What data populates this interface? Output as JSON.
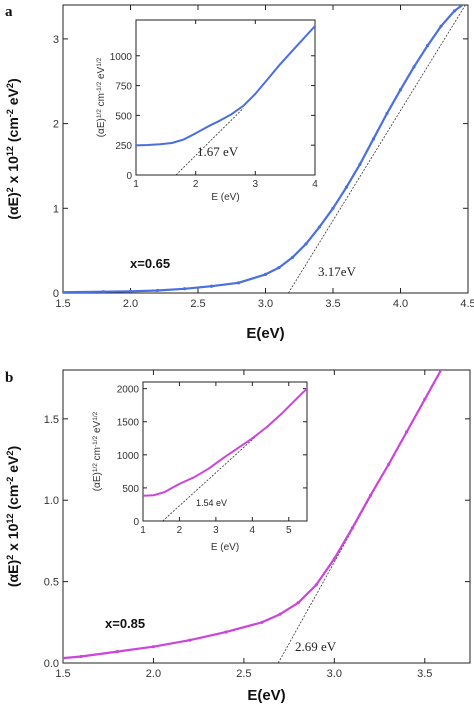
{
  "chart_data": [
    {
      "panel": "a",
      "type": "line",
      "xlabel": "E(eV)",
      "ylabel_html": "(αE)² x 10¹² (cm⁻² eV²)",
      "xlim": [
        1.5,
        4.5
      ],
      "ylim": [
        0,
        3.4
      ],
      "xticks": [
        1.5,
        2.0,
        2.5,
        3.0,
        3.5,
        4.0,
        4.5
      ],
      "xtick_labels": [
        "1.5",
        "2.0",
        "2.5",
        "3.0",
        "3.5",
        "4.0",
        "4.5"
      ],
      "yticks": [
        0,
        1,
        2,
        3
      ],
      "ytick_labels": [
        "0",
        "1",
        "2",
        "3"
      ],
      "color": "#4a6fe0",
      "series": [
        {
          "x": [
            1.5,
            1.8,
            2.0,
            2.2,
            2.4,
            2.6,
            2.8,
            3.0,
            3.1,
            3.2,
            3.3,
            3.4,
            3.5,
            3.6,
            3.7,
            3.8,
            3.9,
            4.0,
            4.1,
            4.2,
            4.3,
            4.4,
            4.5
          ],
          "y": [
            0.01,
            0.015,
            0.02,
            0.03,
            0.05,
            0.08,
            0.12,
            0.22,
            0.3,
            0.42,
            0.58,
            0.78,
            1.0,
            1.25,
            1.52,
            1.82,
            2.12,
            2.4,
            2.67,
            2.92,
            3.15,
            3.33,
            3.45
          ]
        }
      ],
      "fit_line": {
        "x": [
          3.17,
          4.5
        ],
        "y": [
          0,
          3.45
        ]
      },
      "annotations": {
        "composition": "x=0.65",
        "gap": "3.17eV"
      },
      "inset": {
        "xlabel": "E (eV)",
        "ylabel_html": "(αE)^1/2 cm^-1/2 eV^1/2",
        "xlim": [
          1,
          4
        ],
        "ylim": [
          0,
          1300
        ],
        "xticks": [
          1,
          2,
          3,
          4
        ],
        "xtick_labels": [
          "1",
          "2",
          "3",
          "4"
        ],
        "yticks": [
          0,
          250,
          500,
          750,
          1000
        ],
        "ytick_labels": [
          "0",
          "250",
          "500",
          "750",
          "1000"
        ],
        "series": [
          {
            "x": [
              1.0,
              1.2,
              1.4,
              1.6,
              1.8,
              2.0,
              2.2,
              2.4,
              2.6,
              2.8,
              3.0,
              3.2,
              3.4,
              3.6,
              3.8,
              4.0
            ],
            "y": [
              248,
              252,
              258,
              268,
              298,
              350,
              405,
              455,
              510,
              580,
              680,
              800,
              920,
              1030,
              1140,
              1250
            ]
          }
        ],
        "fit_line": {
          "x": [
            1.67,
            2.8
          ],
          "y": [
            0,
            560
          ]
        },
        "gap_label": "1.67 eV"
      }
    },
    {
      "panel": "b",
      "type": "line",
      "xlabel": "E(eV)",
      "ylabel_html": "(αE)² x 10¹² (cm⁻² eV²)",
      "xlim": [
        1.5,
        3.75
      ],
      "ylim": [
        0,
        1.8
      ],
      "xticks": [
        1.5,
        2.0,
        2.5,
        3.0,
        3.5
      ],
      "xtick_labels": [
        "1.5",
        "2.0",
        "2.5",
        "3.0",
        "3.5"
      ],
      "yticks": [
        0,
        0.5,
        1.0,
        1.5
      ],
      "ytick_labels": [
        "0.0",
        "0.5",
        "1.0",
        "1.5"
      ],
      "color": "#cc44dd",
      "series": [
        {
          "x": [
            1.5,
            1.6,
            1.8,
            2.0,
            2.2,
            2.4,
            2.6,
            2.7,
            2.8,
            2.9,
            3.0,
            3.1,
            3.2,
            3.3,
            3.4,
            3.5,
            3.6
          ],
          "y": [
            0.03,
            0.04,
            0.07,
            0.1,
            0.14,
            0.19,
            0.25,
            0.3,
            0.37,
            0.48,
            0.64,
            0.83,
            1.03,
            1.22,
            1.42,
            1.62,
            1.82
          ]
        }
      ],
      "fit_line": {
        "x": [
          2.69,
          3.6
        ],
        "y": [
          0,
          1.82
        ]
      },
      "annotations": {
        "composition": "x=0.85",
        "gap": "2.69 eV"
      },
      "inset": {
        "xlabel": "E (eV)",
        "ylabel_html": "(αE)^1/2 cm^-1/2 eV^1/2",
        "xlim": [
          1,
          5.5
        ],
        "ylim": [
          0,
          2100
        ],
        "xticks": [
          1,
          2,
          3,
          4,
          5
        ],
        "xtick_labels": [
          "1",
          "2",
          "3",
          "4",
          "5"
        ],
        "yticks": [
          0,
          500,
          1000,
          1500,
          2000
        ],
        "ytick_labels": [
          "0",
          "500",
          "1000",
          "1500",
          "2000"
        ],
        "series": [
          {
            "x": [
              1.0,
              1.3,
              1.6,
              2.0,
              2.4,
              2.8,
              3.2,
              3.6,
              4.0,
              4.4,
              4.8,
              5.2,
              5.5
            ],
            "y": [
              380,
              390,
              440,
              560,
              660,
              790,
              950,
              1100,
              1250,
              1420,
              1620,
              1840,
              2000
            ]
          }
        ],
        "fit_line": {
          "x": [
            1.54,
            4.4
          ],
          "y": [
            0,
            1430
          ]
        },
        "gap_label": "1.54 eV"
      }
    }
  ]
}
